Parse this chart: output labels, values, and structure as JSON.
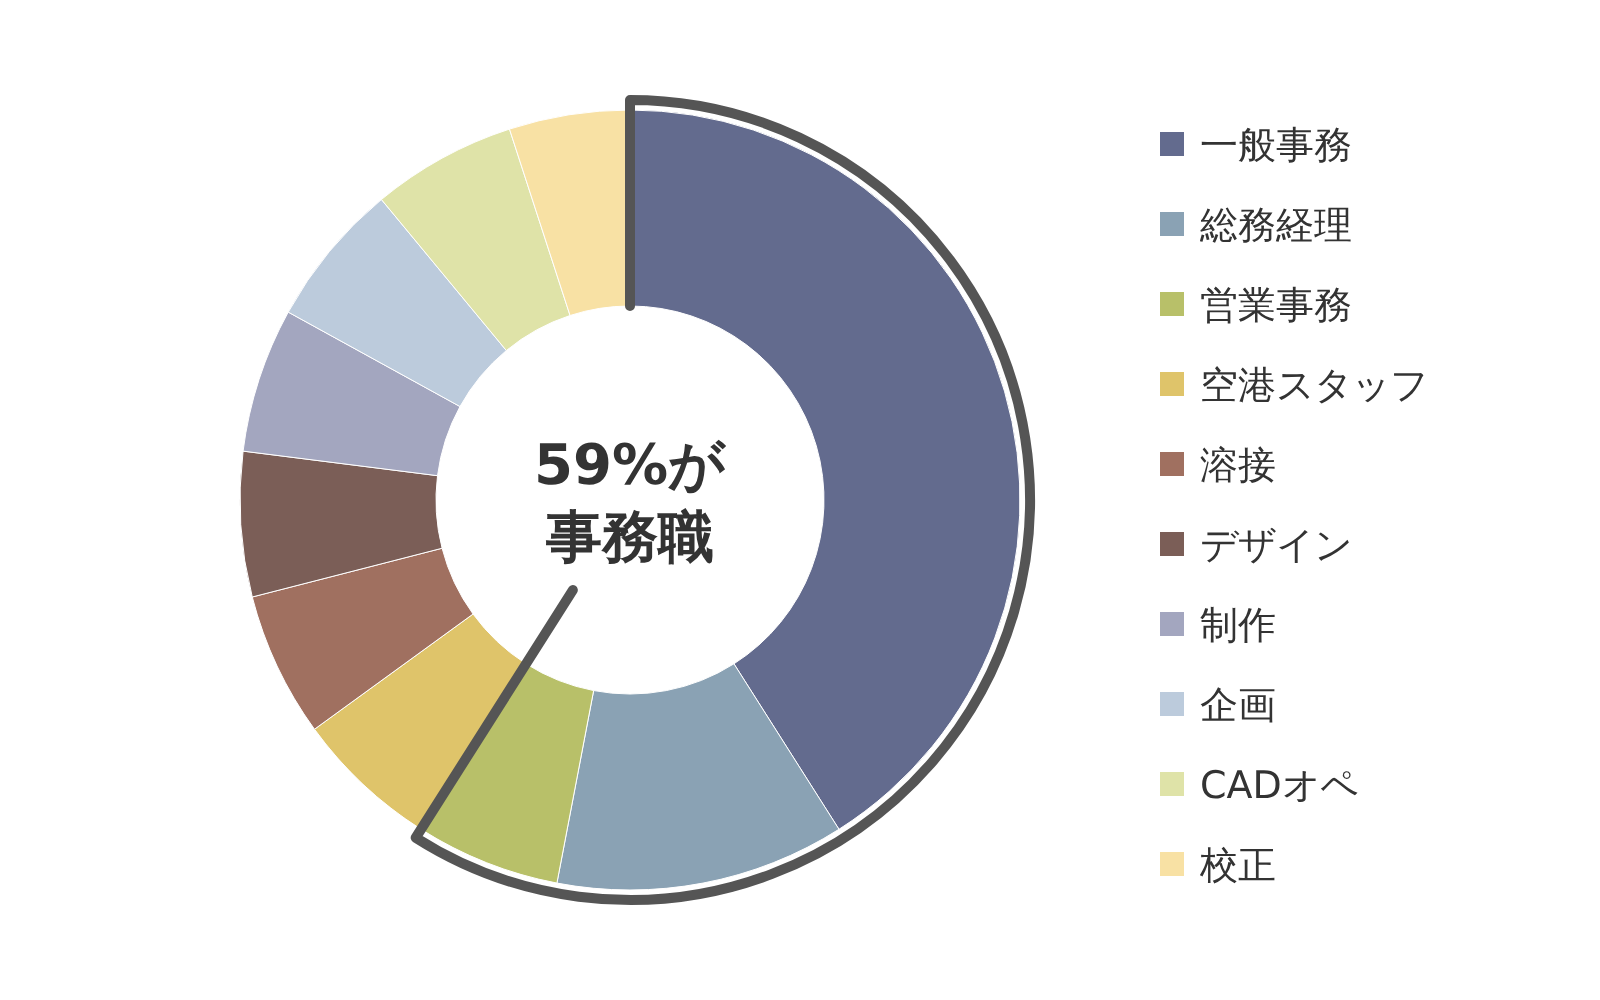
{
  "chart_data": {
    "type": "donut",
    "categories": [
      "一般事務",
      "総務経理",
      "営業事務",
      "空港スタッフ",
      "溶接",
      "デザイン",
      "制作",
      "企画",
      "CADオペ",
      "校正"
    ],
    "values": [
      41,
      12,
      6,
      6,
      6,
      6,
      6,
      6,
      6,
      5
    ],
    "colors": [
      "#636b8e",
      "#8aa2b4",
      "#b8c069",
      "#dfc46a",
      "#a07060",
      "#7b5e57",
      "#a3a6bf",
      "#bccbdc",
      "#dfe3a8",
      "#f8e1a4"
    ],
    "annotations": [
      "59%が",
      "事務職"
    ],
    "legend": "right"
  }
}
